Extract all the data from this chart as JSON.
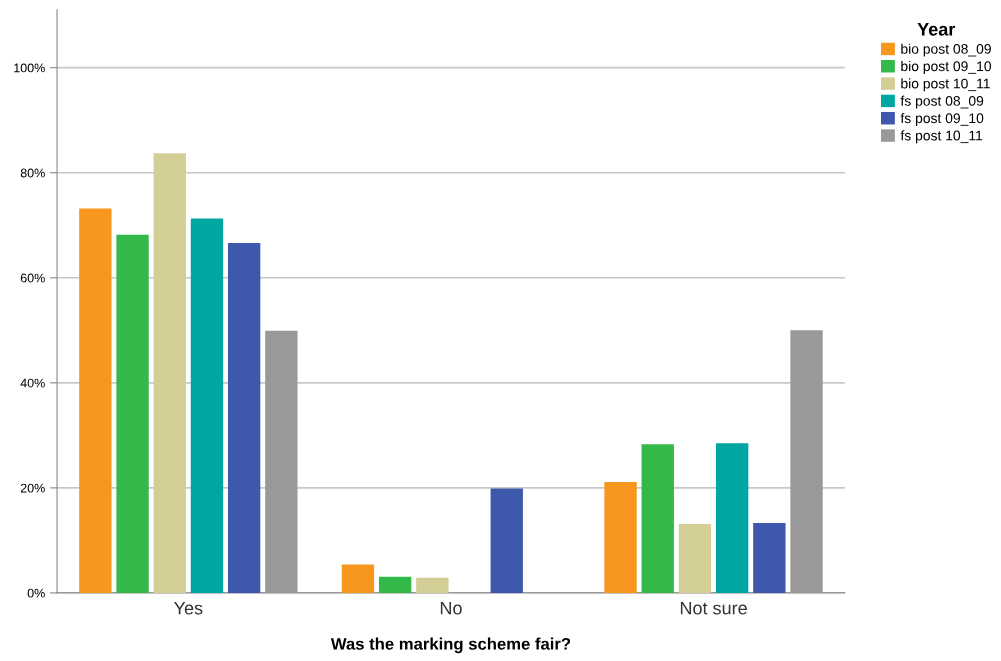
{
  "chart_data": {
    "type": "bar",
    "xlabel": "Was the marking scheme fair?",
    "legend_title": "Year",
    "categories": [
      "Yes",
      "No",
      "Not sure"
    ],
    "series": [
      {
        "name": "bio post 08_09",
        "color": "#f7971e",
        "values": [
          73.2,
          5.4,
          21.1
        ]
      },
      {
        "name": "bio post 09_10",
        "color": "#33b84a",
        "values": [
          68.2,
          3.1,
          28.3
        ]
      },
      {
        "name": "bio post 10_11",
        "color": "#d3cd96",
        "values": [
          83.7,
          2.9,
          13.1
        ]
      },
      {
        "name": "fs post 08_09",
        "color": "#00a7a2",
        "values": [
          71.3,
          0,
          28.5
        ]
      },
      {
        "name": "fs post 09_10",
        "color": "#3e58ab",
        "values": [
          66.6,
          19.9,
          13.3
        ]
      },
      {
        "name": "fs post 10_11",
        "color": "#999999",
        "values": [
          49.9,
          0,
          50.0
        ]
      }
    ],
    "ylim": [
      0,
      111
    ],
    "yticks": [
      {
        "value": 0,
        "label": "0%"
      },
      {
        "value": 20,
        "label": "20%"
      },
      {
        "value": 40,
        "label": "40%"
      },
      {
        "value": 60,
        "label": "60%"
      },
      {
        "value": 80,
        "label": "80%"
      },
      {
        "value": 100,
        "label": "100%"
      }
    ],
    "grid": "y",
    "legend": "right"
  }
}
